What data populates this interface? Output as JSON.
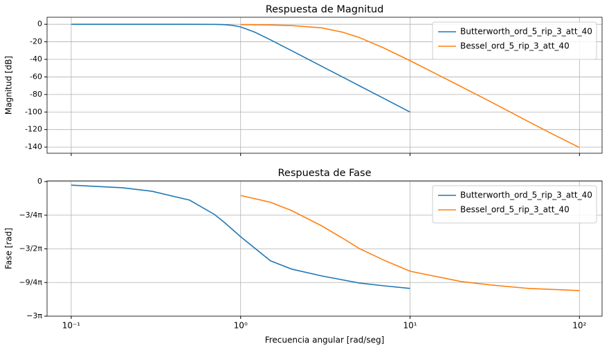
{
  "chart_data": [
    {
      "type": "line",
      "title": "Respuesta de Magnitud",
      "y_label": "Magnitud [dB]",
      "xscale": "log",
      "xlim": [
        0.072,
        136
      ],
      "xticks": [
        0.1,
        1,
        10,
        100
      ],
      "ylim": [
        -147,
        8
      ],
      "yticks": [
        0,
        -20,
        -40,
        -60,
        -80,
        -100,
        -120,
        -140
      ],
      "grid": true,
      "legend": "upper right",
      "series": [
        {
          "name": "Butterworth_ord_5_rip_3_att_40",
          "color": "#1f77b4",
          "x": [
            0.1,
            0.2,
            0.3,
            0.5,
            0.7,
            0.8,
            0.9,
            1,
            1.2,
            1.5,
            2,
            3,
            5,
            7,
            10
          ],
          "values": [
            0,
            0,
            0,
            -0.004,
            -0.12,
            -0.44,
            -1.3,
            -3,
            -8.6,
            -17.7,
            -30.1,
            -47.7,
            -69.9,
            -84.5,
            -100
          ]
        },
        {
          "name": "Bessel_ord_5_rip_3_att_40",
          "color": "#ff7f0e",
          "x": [
            1,
            1.5,
            2,
            3,
            4,
            5,
            7,
            10,
            20,
            30,
            50,
            70,
            100
          ],
          "values": [
            -0.4,
            -0.8,
            -1.5,
            -4,
            -9,
            -15,
            -27,
            -41.5,
            -71,
            -88.5,
            -111,
            -125.5,
            -140.5
          ]
        }
      ]
    },
    {
      "type": "line",
      "title": "Respuesta de Fase",
      "y_label": "Fase [rad]",
      "x_label": "Frecuencia angular [rad/seg]",
      "xscale": "log",
      "xlim": [
        0.072,
        136
      ],
      "xticks": [
        {
          "value": 0.1,
          "label": "10⁻¹"
        },
        {
          "value": 1,
          "label": "10⁰"
        },
        {
          "value": 10,
          "label": "10¹"
        },
        {
          "value": 100,
          "label": "10²"
        }
      ],
      "ylim": [
        -9.42478,
        0.05
      ],
      "yticks": [
        0,
        {
          "value": -2.35619,
          "label": "−3/4π"
        },
        {
          "value": -4.71239,
          "label": "−3/2π"
        },
        {
          "value": -7.06858,
          "label": "−9/4π"
        },
        {
          "value": -9.42478,
          "label": "−3π"
        }
      ],
      "grid": true,
      "legend": "upper right",
      "series": [
        {
          "name": "Butterworth_ord_5_rip_3_att_40",
          "color": "#1f77b4",
          "x": [
            0.1,
            0.2,
            0.3,
            0.5,
            0.7,
            0.8,
            0.9,
            1,
            1.5,
            2,
            3,
            5,
            7,
            10
          ],
          "values": [
            -0.25,
            -0.43,
            -0.68,
            -1.3,
            -2.3,
            -2.85,
            -3.38,
            -3.86,
            -5.55,
            -6.13,
            -6.6,
            -7.1,
            -7.3,
            -7.48
          ]
        },
        {
          "name": "Bessel_ord_5_rip_3_att_40",
          "color": "#ff7f0e",
          "x": [
            1,
            1.5,
            2,
            3,
            4,
            5,
            7,
            10,
            20,
            30,
            50,
            100
          ],
          "values": [
            -0.97,
            -1.45,
            -2.03,
            -3.09,
            -3.96,
            -4.68,
            -5.5,
            -6.28,
            -7.0,
            -7.24,
            -7.48,
            -7.63
          ]
        }
      ]
    }
  ]
}
